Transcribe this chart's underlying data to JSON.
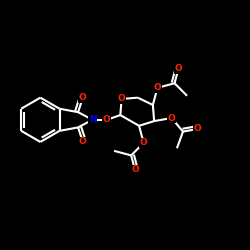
{
  "background": "#000000",
  "bond_color": "#ffffff",
  "bond_width": 1.5,
  "atom_colors": {
    "O": "#ff2200",
    "N": "#0000ff",
    "C": "#ffffff"
  },
  "font_size": 6.5,
  "figsize": [
    2.5,
    2.5
  ],
  "dpi": 100
}
